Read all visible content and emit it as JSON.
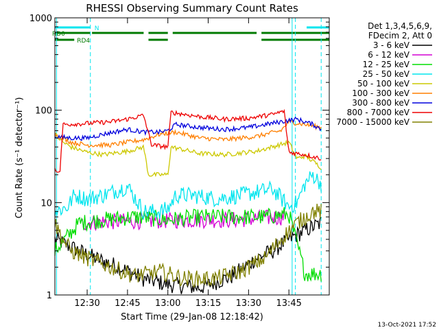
{
  "chart_data": {
    "type": "line",
    "title": "RHESSI Observing Summary Count Rates",
    "xlabel": "Start Time (29-Jan-08 12:18:42)",
    "ylabel": "Count Rate (s⁻¹ detector⁻¹)",
    "yscale": "log",
    "ylim": [
      1,
      1000
    ],
    "xlim_minutes": [
      12.3,
      14.0
    ],
    "x_ticks": [
      {
        "t": 12.5,
        "label": "12:30"
      },
      {
        "t": 12.75,
        "label": "12:45"
      },
      {
        "t": 13.0,
        "label": "13:00"
      },
      {
        "t": 13.25,
        "label": "13:15"
      },
      {
        "t": 13.5,
        "label": "13:30"
      },
      {
        "t": 13.75,
        "label": "13:45"
      }
    ],
    "y_ticks": [
      {
        "v": 1,
        "label": "1"
      },
      {
        "v": 10,
        "label": "10"
      },
      {
        "v": 100,
        "label": "100"
      },
      {
        "v": 1000,
        "label": "1000"
      }
    ],
    "legend_header": [
      "Det 1,3,4,5,6,9,",
      "FDecim 2, Att 0"
    ],
    "legend_position": "right",
    "footer_date": "13-Oct-2021 17:52",
    "flags": [
      {
        "label": "N",
        "color": "#00e5ee",
        "segments": [
          [
            12.3,
            12.52
          ],
          [
            13.86,
            14.0
          ]
        ]
      },
      {
        "label": "RD0",
        "color": "#007a00",
        "segments": [
          [
            12.3,
            12.52
          ],
          [
            12.53,
            12.85
          ],
          [
            12.88,
            13.0
          ],
          [
            13.03,
            13.55
          ],
          [
            13.58,
            14.0
          ]
        ]
      },
      {
        "label": "RD4",
        "color": "#007a00",
        "segments": [
          [
            12.3,
            12.42
          ],
          [
            12.88,
            13.0
          ],
          [
            13.58,
            14.0
          ]
        ]
      }
    ],
    "vlines": [
      {
        "t": 12.31,
        "color": "#00e5ee",
        "dash": false
      },
      {
        "t": 12.52,
        "color": "#00e5ee",
        "dash": true
      },
      {
        "t": 13.77,
        "color": "#00e5ee",
        "dash": false
      },
      {
        "t": 13.79,
        "color": "#00e5ee",
        "dash": true
      },
      {
        "t": 13.95,
        "color": "#00e5ee",
        "dash": true
      }
    ],
    "series": [
      {
        "name": "3 - 6 keV",
        "color": "#000000",
        "points": [
          [
            12.3,
            4
          ],
          [
            12.45,
            3
          ],
          [
            12.55,
            2.5
          ],
          [
            12.7,
            2
          ],
          [
            12.85,
            1.5
          ],
          [
            13.0,
            1.3
          ],
          [
            13.2,
            1.2
          ],
          [
            13.4,
            1.6
          ],
          [
            13.55,
            2.5
          ],
          [
            13.65,
            3
          ],
          [
            13.75,
            4
          ],
          [
            13.85,
            5
          ],
          [
            13.95,
            6
          ]
        ]
      },
      {
        "name": "6 - 12 keV",
        "color": "#d400d4",
        "points": [
          [
            12.47,
            6
          ],
          [
            12.6,
            6.2
          ],
          [
            12.8,
            6.3
          ],
          [
            13.0,
            6.4
          ],
          [
            13.2,
            6.5
          ],
          [
            13.4,
            6.5
          ],
          [
            13.6,
            6.8
          ],
          [
            13.72,
            7
          ]
        ]
      },
      {
        "name": "12 - 25 keV",
        "color": "#00dd00",
        "points": [
          [
            12.3,
            3
          ],
          [
            12.45,
            6
          ],
          [
            12.6,
            6.5
          ],
          [
            12.8,
            7
          ],
          [
            13.0,
            6.5
          ],
          [
            13.2,
            7
          ],
          [
            13.4,
            7
          ],
          [
            13.6,
            7
          ],
          [
            13.75,
            7.5
          ],
          [
            13.85,
            1.7
          ],
          [
            13.95,
            1.7
          ]
        ]
      },
      {
        "name": "25 - 50 keV",
        "color": "#00e5ee",
        "points": [
          [
            12.3,
            8
          ],
          [
            12.38,
            9
          ],
          [
            12.42,
            12
          ],
          [
            12.5,
            11
          ],
          [
            12.6,
            12
          ],
          [
            12.75,
            15
          ],
          [
            12.85,
            8
          ],
          [
            12.95,
            8
          ],
          [
            13.0,
            8.5
          ],
          [
            13.05,
            12
          ],
          [
            13.15,
            12
          ],
          [
            13.3,
            11
          ],
          [
            13.45,
            12
          ],
          [
            13.55,
            13
          ],
          [
            13.65,
            14
          ],
          [
            13.75,
            9
          ],
          [
            13.8,
            10
          ],
          [
            13.85,
            16
          ],
          [
            13.9,
            20
          ],
          [
            13.95,
            16
          ]
        ]
      },
      {
        "name": "50 - 100 keV",
        "color": "#ccc800",
        "points": [
          [
            12.3,
            55
          ],
          [
            12.35,
            45
          ],
          [
            12.4,
            40
          ],
          [
            12.5,
            35
          ],
          [
            12.6,
            33
          ],
          [
            12.75,
            36
          ],
          [
            12.85,
            40
          ],
          [
            12.88,
            20
          ],
          [
            13.0,
            20
          ],
          [
            13.02,
            40
          ],
          [
            13.2,
            34
          ],
          [
            13.35,
            33
          ],
          [
            13.55,
            36
          ],
          [
            13.75,
            45
          ],
          [
            13.8,
            30
          ],
          [
            13.85,
            32
          ],
          [
            13.9,
            28
          ],
          [
            13.95,
            24
          ]
        ]
      },
      {
        "name": "100 - 300 keV",
        "color": "#ff7f00",
        "points": [
          [
            12.3,
            55
          ],
          [
            12.4,
            45
          ],
          [
            12.5,
            42
          ],
          [
            12.65,
            42
          ],
          [
            12.75,
            45
          ],
          [
            12.85,
            48
          ],
          [
            12.95,
            55
          ],
          [
            13.05,
            58
          ],
          [
            13.2,
            50
          ],
          [
            13.35,
            48
          ],
          [
            13.55,
            52
          ],
          [
            13.7,
            60
          ],
          [
            13.75,
            75
          ],
          [
            13.85,
            70
          ],
          [
            13.95,
            65
          ]
        ]
      },
      {
        "name": "300 - 800 keV",
        "color": "#0000dd",
        "points": [
          [
            12.3,
            52
          ],
          [
            12.4,
            50
          ],
          [
            12.5,
            50
          ],
          [
            12.6,
            55
          ],
          [
            12.75,
            62
          ],
          [
            12.85,
            58
          ],
          [
            12.95,
            58
          ],
          [
            13.0,
            60
          ],
          [
            13.05,
            70
          ],
          [
            13.2,
            65
          ],
          [
            13.35,
            62
          ],
          [
            13.5,
            65
          ],
          [
            13.7,
            75
          ],
          [
            13.8,
            80
          ],
          [
            13.9,
            70
          ],
          [
            13.95,
            62
          ]
        ]
      },
      {
        "name": "800 - 7000 keV",
        "color": "#ee0000",
        "points": [
          [
            12.3,
            24
          ],
          [
            12.33,
            20
          ],
          [
            12.35,
            70
          ],
          [
            12.5,
            72
          ],
          [
            12.65,
            75
          ],
          [
            12.75,
            80
          ],
          [
            12.85,
            88
          ],
          [
            12.9,
            42
          ],
          [
            13.0,
            40
          ],
          [
            13.02,
            95
          ],
          [
            13.2,
            85
          ],
          [
            13.35,
            80
          ],
          [
            13.5,
            82
          ],
          [
            13.65,
            90
          ],
          [
            13.72,
            98
          ],
          [
            13.75,
            35
          ],
          [
            13.85,
            33
          ],
          [
            13.95,
            30
          ]
        ]
      },
      {
        "name": "7000 - 15000 keV",
        "color": "#808000",
        "points": [
          [
            12.3,
            6
          ],
          [
            12.35,
            4
          ],
          [
            12.4,
            3
          ],
          [
            12.5,
            2.5
          ],
          [
            12.65,
            2
          ],
          [
            12.8,
            1.6
          ],
          [
            12.95,
            1.8
          ],
          [
            13.1,
            1.5
          ],
          [
            13.3,
            1.5
          ],
          [
            13.45,
            1.8
          ],
          [
            13.6,
            2.5
          ],
          [
            13.7,
            4
          ],
          [
            13.8,
            6
          ],
          [
            13.9,
            8
          ],
          [
            13.95,
            8
          ]
        ]
      }
    ]
  }
}
